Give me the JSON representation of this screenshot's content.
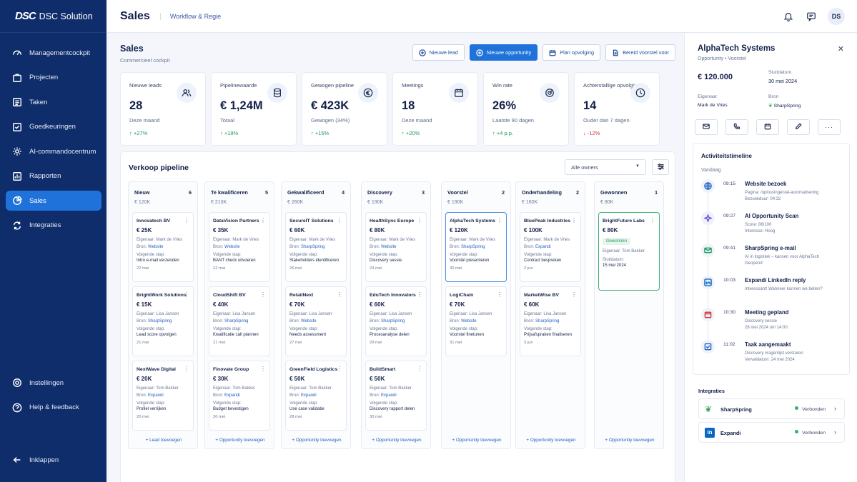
{
  "brand": {
    "logo": "DSC",
    "name": "DSC Solution"
  },
  "sidebar": {
    "items": [
      {
        "label": "Managementcockpit",
        "icon": "gauge-icon"
      },
      {
        "label": "Projecten",
        "icon": "briefcase-icon"
      },
      {
        "label": "Taken",
        "icon": "checklist-icon"
      },
      {
        "label": "Goedkeuringen",
        "icon": "check-square-icon"
      },
      {
        "label": "AI-commandocentrum",
        "icon": "gear-icon"
      },
      {
        "label": "Rapporten",
        "icon": "report-icon"
      },
      {
        "label": "Sales",
        "icon": "pie-icon",
        "active": true
      },
      {
        "label": "Integraties",
        "icon": "sync-icon"
      }
    ],
    "bottom": [
      {
        "label": "Instellingen",
        "icon": "settings-icon"
      },
      {
        "label": "Help & feedback",
        "icon": "help-icon"
      }
    ],
    "collapse": "Inklappen"
  },
  "topbar": {
    "title": "Sales",
    "subtitle": "Workflow & Regie",
    "avatar": "DS"
  },
  "header": {
    "title": "Sales",
    "subtitle": "Commercieel cockpit"
  },
  "actions": [
    "Nieuwe lead",
    "Nieuwe opportunity",
    "Plan opvolging",
    "Bereid voorstel voor"
  ],
  "kpis": [
    {
      "label": "Nieuwe leads",
      "value": "28",
      "sub": "Deze maand",
      "delta": "↑ +27%",
      "dir": "up",
      "icon": "users-icon"
    },
    {
      "label": "Pipelinewaarde",
      "value": "€ 1,24M",
      "sub": "Totaal",
      "delta": "↑ +18%",
      "dir": "up",
      "icon": "database-icon"
    },
    {
      "label": "Gewogen pipeline",
      "value": "€ 423K",
      "sub": "Gewogen (34%)",
      "delta": "↑ +15%",
      "dir": "up",
      "icon": "euro-icon"
    },
    {
      "label": "Meetings",
      "value": "18",
      "sub": "Deze maand",
      "delta": "↑ +20%",
      "dir": "up",
      "icon": "calendar-icon"
    },
    {
      "label": "Win rate",
      "value": "26%",
      "sub": "Laatste 90 dagen",
      "delta": "↑ +4 p.p.",
      "dir": "up",
      "icon": "target-icon"
    },
    {
      "label": "Achterstallige opvolging",
      "value": "14",
      "sub": "Ouder dan 7 dagen",
      "delta": "↓ -12%",
      "dir": "down",
      "icon": "clock-icon"
    }
  ],
  "pipeline": {
    "title": "Verkoop pipeline",
    "owners": "Alle owners",
    "columns": [
      {
        "name": "Nieuw",
        "count": "6",
        "value": "€ 120K",
        "add": "+ Lead toevoegen",
        "cards": [
          {
            "name": "Innovatech BV",
            "value": "€ 25K",
            "owner": "Eigenaar: Mark de Vries",
            "src_label": "Bron: ",
            "source": "Website",
            "next_label": "Volgende stap:",
            "next": "Intro e-mail verzenden",
            "date": "22 mei"
          },
          {
            "name": "BrightWork Solutions",
            "value": "€ 15K",
            "owner": "Eigenaar: Lisa Jansen",
            "src_label": "Bron: ",
            "source": "SharpSpring",
            "next_label": "Volgende stap:",
            "next": "Lead score opvolgen",
            "date": "21 mei"
          },
          {
            "name": "NextWave Digital",
            "value": "€ 20K",
            "owner": "Eigenaar: Tom Bakker",
            "src_label": "Bron: ",
            "source": "Expandi",
            "next_label": "Volgende stap:",
            "next": "Profiel verrijken",
            "date": "20 mei"
          }
        ]
      },
      {
        "name": "Te kwalificeren",
        "count": "5",
        "value": "€ 210K",
        "add": "+ Opportunity toevoegen",
        "cards": [
          {
            "name": "DataVision Partners",
            "value": "€ 35K",
            "owner": "Eigenaar: Mark de Vries",
            "src_label": "Bron: ",
            "source": "Website",
            "next_label": "Volgende stap:",
            "next": "BANT check uitvoeren",
            "date": "22 mei"
          },
          {
            "name": "CloudShift BV",
            "value": "€ 40K",
            "owner": "Eigenaar: Lisa Jansen",
            "src_label": "Bron: ",
            "source": "SharpSpring",
            "next_label": "Volgende stap:",
            "next": "Kwalificatie call plannen",
            "date": "21 mei"
          },
          {
            "name": "Finovate Group",
            "value": "€ 30K",
            "owner": "Eigenaar: Tom Bakker",
            "src_label": "Bron: ",
            "source": "Expandi",
            "next_label": "Volgende stap:",
            "next": "Budget bevestigen",
            "date": "20 mei"
          }
        ]
      },
      {
        "name": "Gekwalificeerd",
        "count": "4",
        "value": "€ 260K",
        "add": "+ Opportunity toevoegen",
        "cards": [
          {
            "name": "SecureIT Solutions",
            "value": "€ 60K",
            "owner": "Eigenaar: Mark de Vries",
            "src_label": "Bron: ",
            "source": "SharpSpring",
            "next_label": "Volgende stap:",
            "next": "Stakeholders identificeren",
            "date": "26 mei"
          },
          {
            "name": "RetailNext",
            "value": "€ 70K",
            "owner": "Eigenaar: Lisa Jansen",
            "src_label": "Bron: ",
            "source": "Website",
            "next_label": "Volgende stap:",
            "next": "Needs assessment",
            "date": "27 mei"
          },
          {
            "name": "GreenField Logistics",
            "value": "€ 50K",
            "owner": "Eigenaar: Tom Bakker",
            "src_label": "Bron: ",
            "source": "Expandi",
            "next_label": "Volgende stap:",
            "next": "Use case validatie",
            "date": "28 mei"
          }
        ]
      },
      {
        "name": "Discovery",
        "count": "3",
        "value": "€ 190K",
        "add": "+ Opportunity toevoegen",
        "cards": [
          {
            "name": "HealthSync Europe",
            "value": "€ 80K",
            "owner": "Eigenaar: Mark de Vries",
            "src_label": "Bron: ",
            "source": "Website",
            "next_label": "Volgende stap:",
            "next": "Discovery sessie",
            "date": "23 mei"
          },
          {
            "name": "EduTech Innovators",
            "value": "€ 60K",
            "owner": "Eigenaar: Lisa Jansen",
            "src_label": "Bron: ",
            "source": "SharpSpring",
            "next_label": "Volgende stap:",
            "next": "Procesanalyse delen",
            "date": "29 mei"
          },
          {
            "name": "BuildSmart",
            "value": "€ 50K",
            "owner": "Eigenaar: Tom Bakker",
            "src_label": "Bron: ",
            "source": "Expandi",
            "next_label": "Volgende stap:",
            "next": "Discovery rapport delen",
            "date": "30 mei"
          }
        ]
      },
      {
        "name": "Voorstel",
        "count": "2",
        "value": "€ 190K",
        "add": "+ Opportunity toevoegen",
        "cards": [
          {
            "name": "AlphaTech Systems",
            "value": "€ 120K",
            "owner": "Eigenaar: Mark de Vries",
            "src_label": "Bron: ",
            "source": "SharpSpring",
            "next_label": "Volgende stap:",
            "next": "Voorstel presenteren",
            "date": "30 mei",
            "highlight": true
          },
          {
            "name": "LogiChain",
            "value": "€ 70K",
            "owner": "Eigenaar: Lisa Jansen",
            "src_label": "Bron: ",
            "source": "Website",
            "next_label": "Volgende stap:",
            "next": "Voorstel finetunen",
            "date": "31 mei"
          }
        ]
      },
      {
        "name": "Onderhandeling",
        "count": "2",
        "value": "€ 160K",
        "add": "+ Opportunity toevoegen",
        "cards": [
          {
            "name": "BluePeak Industries",
            "value": "€ 100K",
            "owner": "Eigenaar: Mark de Vries",
            "src_label": "Bron: ",
            "source": "Expandi",
            "next_label": "Volgende stap:",
            "next": "Contract bespreken",
            "date": "2 jun"
          },
          {
            "name": "MarketWise BV",
            "value": "€ 60K",
            "owner": "Eigenaar: Lisa Jansen",
            "src_label": "Bron: ",
            "source": "SharpSpring",
            "next_label": "Volgende stap:",
            "next": "Prijsafspraken finaliseren",
            "date": "3 jun"
          }
        ]
      },
      {
        "name": "Gewonnen",
        "count": "1",
        "value": "€ 80K",
        "add": "+ Opportunity toevoegen",
        "cards": [
          {
            "name": "BrightFuture Labs",
            "value": "€ 80K",
            "badge": "Gewonnen",
            "owner": "Eigenaar: Tom Bakker",
            "closing_label": "Sluitdatum:",
            "closing": "15 mei 2024",
            "won": true
          }
        ]
      }
    ]
  },
  "detail": {
    "title": "AlphaTech Systems",
    "subtitle": "Opportunity  •  Voorstel",
    "amount": "€ 120.000",
    "close_label": "Sluitdatum",
    "close_value": "30 mei 2024",
    "owner_label": "Eigenaar",
    "owner_value": "Mark de Vries",
    "source_label": "Bron",
    "source_value": "SharpSpring",
    "timeline_title": "Activiteitstimeline",
    "today": "Vandaag",
    "timeline": [
      {
        "time": "09:15",
        "title": "Website bezoek",
        "lines": [
          "Pagina: /oplossingen/ai-automatisering",
          "Bezoekduur: 04:32"
        ],
        "icon": "globe-icon",
        "color": "#2460c3"
      },
      {
        "time": "09:27",
        "title": "AI Opportunity Scan",
        "lines": [
          "Score: 86/100",
          "Interesse: Hoog"
        ],
        "icon": "sparkle-icon",
        "color": "#6b4bd6"
      },
      {
        "time": "09:41",
        "title": "SharpSpring e-mail",
        "lines": [
          "AI in logistiek – kansen voor AlphaTech",
          "Geopend"
        ],
        "icon": "mail-icon",
        "color": "#1f9a58"
      },
      {
        "time": "10:03",
        "title": "Expandi LinkedIn reply",
        "lines": [
          "Interessant! Wanneer kunnen we bellen?"
        ],
        "icon": "linkedin-icon",
        "color": "#0a66c2"
      },
      {
        "time": "10:30",
        "title": "Meeting gepland",
        "lines": [
          "Discovery sessie",
          "28 mei 2024 om 14:00"
        ],
        "icon": "calendar-icon",
        "color": "#d8343a"
      },
      {
        "time": "11:02",
        "title": "Taak aangemaakt",
        "lines": [
          "Discovery vragenlijst versturen",
          "Vervaldatum: 24 mei 2024"
        ],
        "icon": "task-icon",
        "color": "#2460c3"
      }
    ],
    "integrations_title": "Integraties",
    "integrations": [
      {
        "name": "SharpSpring",
        "status": "Verbonden",
        "icon": "sharpspring-icon"
      },
      {
        "name": "Expandi",
        "status": "Verbonden",
        "icon": "linkedin-icon"
      }
    ]
  },
  "colors": {
    "sidebar": "#0f2d6b",
    "accent": "#1f72d9",
    "success": "#1f9a58",
    "danger": "#d8343a"
  }
}
